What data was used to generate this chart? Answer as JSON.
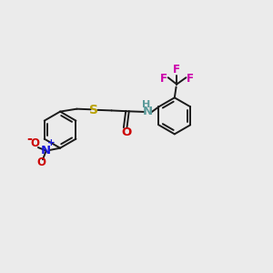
{
  "background_color": "#ebebeb",
  "bond_color": "#1a1a1a",
  "bond_width": 1.4,
  "S_color": "#b8a000",
  "N_amide_color": "#5a9a9a",
  "N_nitro_color": "#1a1add",
  "O_color": "#cc0000",
  "F_color": "#cc00aa",
  "H_color": "#5a9a9a",
  "font_size": 8.5,
  "figsize": [
    3.0,
    3.0
  ],
  "dpi": 100,
  "xlim": [
    0,
    10
  ],
  "ylim": [
    0,
    10
  ]
}
